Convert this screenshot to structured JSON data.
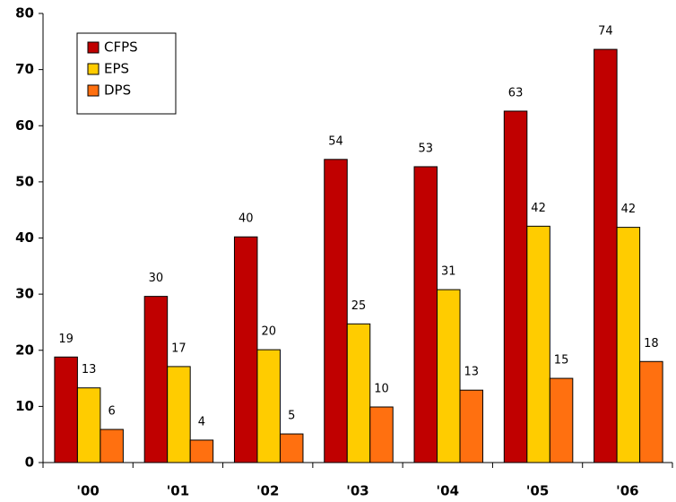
{
  "chart_data": {
    "type": "bar",
    "categories": [
      "'00",
      "'01",
      "'02",
      "'03",
      "'04",
      "'05",
      "'06"
    ],
    "series": [
      {
        "name": "CFPS",
        "color": "#c00000",
        "values": [
          18.8,
          29.6,
          40.2,
          54,
          52.7,
          62.6,
          73.6
        ],
        "value_labels": [
          "19",
          "30",
          "40",
          "54",
          "53",
          "63",
          "74"
        ]
      },
      {
        "name": "EPS",
        "color": "#ffcc00",
        "values": [
          13.3,
          17.1,
          20.1,
          24.7,
          30.8,
          42.1,
          41.9
        ],
        "value_labels": [
          "13",
          "17",
          "20",
          "25",
          "31",
          "42",
          "42"
        ]
      },
      {
        "name": "DPS",
        "color": "#ff7010",
        "values": [
          5.9,
          4,
          5.1,
          9.9,
          12.9,
          15,
          18
        ],
        "value_labels": [
          "6",
          "4",
          "5",
          "10",
          "13",
          "15",
          "18"
        ]
      }
    ],
    "ylim": [
      0,
      80
    ],
    "yticks": [
      0,
      10,
      20,
      30,
      40,
      50,
      60,
      70,
      80
    ],
    "legend": "upper left"
  }
}
